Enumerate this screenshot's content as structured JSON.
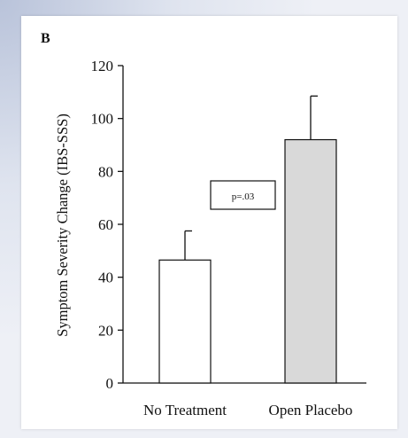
{
  "panel_label": "B",
  "chart_data": {
    "type": "bar",
    "categories": [
      "No Treatment",
      "Open Placebo"
    ],
    "values": [
      46.5,
      92
    ],
    "error_upper": [
      57.5,
      108.5
    ],
    "ylabel": "Symptom Severity Change (IBS-SSS)",
    "xlabel": "",
    "ylim": [
      0,
      120
    ],
    "yticks": [
      0,
      20,
      40,
      60,
      80,
      100,
      120
    ],
    "annotation": "p=.03",
    "grid": false,
    "legend": "none",
    "colors": {
      "bar_fills": [
        "#ffffff",
        "#d9d9d9"
      ],
      "stroke": "#111111"
    }
  }
}
